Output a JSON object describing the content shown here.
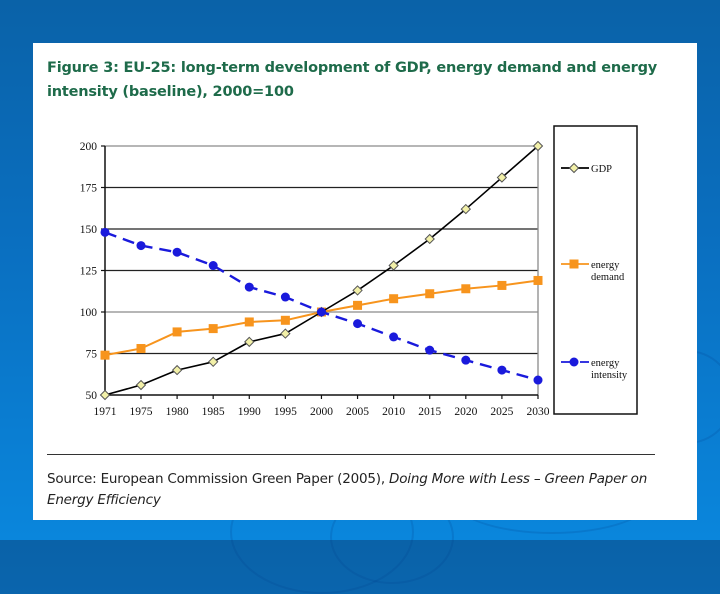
{
  "slide": {
    "background_color": "#0a6fc0",
    "panel_color": "#ffffff",
    "title_color": "#1e6b4a"
  },
  "figure": {
    "title_line1": "Figure 3: EU-25: long-term development of GDP, energy demand and energy",
    "title_line2": "intensity (baseline), 2000=100",
    "source_prefix": "Source: European Commission Green Paper (2005), ",
    "source_italic": "Doing More with Less – Green Paper on Energy Efficiency"
  },
  "chart_data": {
    "type": "line",
    "title": "EU-25: long-term development of GDP, energy demand and energy intensity (baseline), 2000=100",
    "xlabel": "",
    "ylabel": "",
    "x": [
      1971,
      1975,
      1980,
      1985,
      1990,
      1995,
      2000,
      2005,
      2010,
      2015,
      2020,
      2025,
      2030
    ],
    "x_tick_labels": [
      "1971",
      "1975",
      "1980",
      "1985",
      "1990",
      "1995",
      "2000",
      "2005",
      "2010",
      "2015",
      "2020",
      "2025",
      "2030"
    ],
    "ylim": [
      50,
      200
    ],
    "y_ticks": [
      50,
      75,
      100,
      125,
      150,
      175,
      200
    ],
    "grid": "horizontal",
    "legend_position": "right",
    "series": [
      {
        "name": "GDP",
        "color": "#000000",
        "marker": "diamond",
        "marker_fill": "#f2f0a8",
        "line_style": "solid",
        "values": [
          50,
          56,
          65,
          70,
          82,
          87,
          100,
          113,
          128,
          144,
          162,
          181,
          200
        ]
      },
      {
        "name": "energy demand",
        "color": "#f7941d",
        "marker": "square",
        "marker_fill": "#f7941d",
        "line_style": "solid",
        "values": [
          74,
          78,
          88,
          90,
          94,
          95,
          100,
          104,
          108,
          111,
          114,
          116,
          119
        ]
      },
      {
        "name": "energy intensity",
        "color": "#1a1adc",
        "marker": "circle",
        "marker_fill": "#1a1adc",
        "line_style": "dashed",
        "values": [
          148,
          140,
          136,
          128,
          115,
          109,
          100,
          93,
          85,
          77,
          71,
          65,
          59
        ]
      }
    ],
    "legend": [
      {
        "label_lines": [
          "GDP"
        ]
      },
      {
        "label_lines": [
          "energy",
          "demand"
        ]
      },
      {
        "label_lines": [
          "energy",
          "intensity"
        ]
      }
    ]
  }
}
